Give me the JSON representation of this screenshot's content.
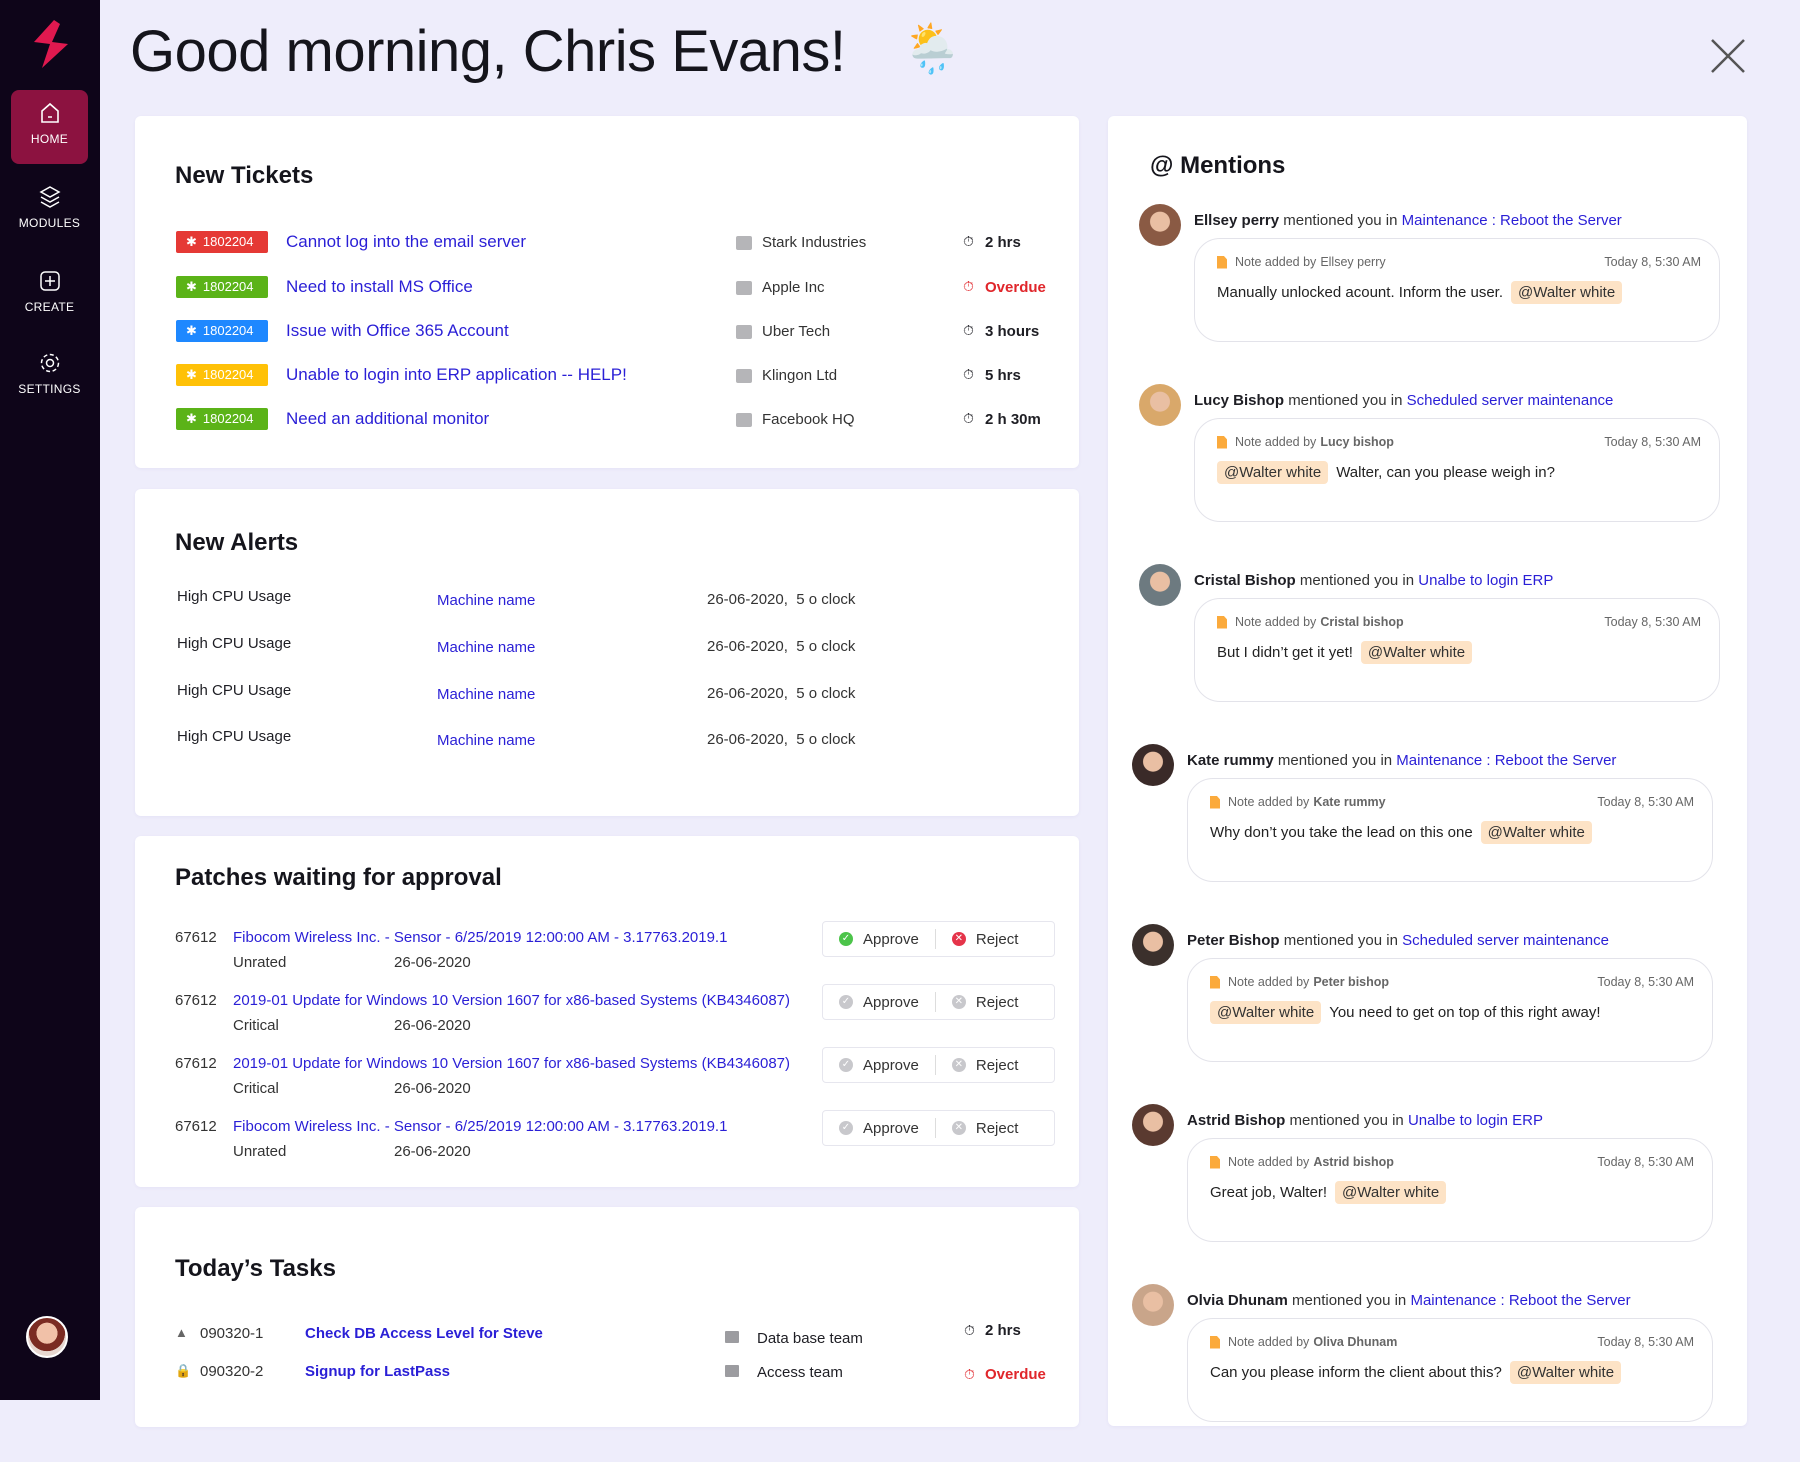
{
  "sidebar": {
    "items": [
      {
        "label": "HOME",
        "icon": "home-icon",
        "active": true
      },
      {
        "label": "MODULES",
        "icon": "layers-icon"
      },
      {
        "label": "CREATE",
        "icon": "plus-square-icon"
      },
      {
        "label": "SETTINGS",
        "icon": "gear-icon"
      }
    ]
  },
  "header": {
    "greeting": "Good morning, Chris Evans!",
    "weather_icon": "🌦️"
  },
  "colors": {
    "accent": "#8c1240",
    "link": "#2a1fd6",
    "overdue": "#e0262b",
    "mention_bg": "#fde3c6"
  },
  "tickets": {
    "title": "New Tickets",
    "rows": [
      {
        "id": "1802204",
        "color": "#e53935",
        "title": "Cannot log into the email server",
        "company": "Stark Industries",
        "time": "2 hrs",
        "overdue": false
      },
      {
        "id": "1802204",
        "color": "#5bb318",
        "title": "Need to install MS Office",
        "company": "Apple Inc",
        "time": "Overdue",
        "overdue": true
      },
      {
        "id": "1802204",
        "color": "#1e88ff",
        "title": "Issue with Office 365 Account",
        "company": "Uber Tech",
        "time": "3 hours",
        "overdue": false
      },
      {
        "id": "1802204",
        "color": "#ffc107",
        "title": "Unable to login into ERP application -- HELP!",
        "company": "Klingon Ltd",
        "time": "5 hrs",
        "overdue": false
      },
      {
        "id": "1802204",
        "color": "#5bb318",
        "title": "Need an additional monitor",
        "company": "Facebook HQ",
        "time": "2 h 30m",
        "overdue": false
      }
    ]
  },
  "alerts": {
    "title": "New Alerts",
    "rows": [
      {
        "name": "High CPU Usage",
        "machine": "Machine name",
        "when": "26-06-2020,  5 o clock"
      },
      {
        "name": "High CPU Usage",
        "machine": "Machine name",
        "when": "26-06-2020,  5 o clock"
      },
      {
        "name": "High CPU Usage",
        "machine": "Machine name",
        "when": "26-06-2020,  5 o clock"
      },
      {
        "name": "High CPU Usage",
        "machine": "Machine name",
        "when": "26-06-2020,  5 o clock"
      }
    ]
  },
  "patches": {
    "title": "Patches waiting for approval",
    "approve_label": "Approve",
    "reject_label": "Reject",
    "rows": [
      {
        "id": "67612",
        "title": "Fibocom Wireless Inc. - Sensor - 6/25/2019 12:00:00 AM - 3.17763.2019.1",
        "rating": "Unrated",
        "date": "26-06-2020",
        "active": true
      },
      {
        "id": "67612",
        "title": "2019-01 Update for Windows 10 Version 1607 for x86-based Systems (KB4346087)",
        "rating": "Critical",
        "date": "26-06-2020",
        "active": false
      },
      {
        "id": "67612",
        "title": "2019-01 Update for Windows 10 Version 1607 for x86-based Systems (KB4346087)",
        "rating": "Critical",
        "date": "26-06-2020",
        "active": false
      },
      {
        "id": "67612",
        "title": "Fibocom Wireless Inc. - Sensor - 6/25/2019 12:00:00 AM - 3.17763.2019.1",
        "rating": "Unrated",
        "date": "26-06-2020",
        "active": false
      }
    ]
  },
  "tasks": {
    "title": "Today’s Tasks",
    "rows": [
      {
        "icon": "warning-icon",
        "id": "090320-1",
        "title": "Check DB Access Level for Steve",
        "team": "Data base team",
        "time": "2 hrs",
        "overdue": false
      },
      {
        "icon": "lock-icon",
        "id": "090320-2",
        "title": "Signup for LastPass",
        "team": "Access team",
        "time": "Overdue",
        "overdue": true
      }
    ]
  },
  "mentions": {
    "title": "@ Mentions",
    "mentioned_text": "mentioned you in",
    "note_prefix": "Note added by",
    "items": [
      {
        "name": "Ellsey perry",
        "context": "Maintenance : Reboot the Server",
        "author": "Ellsey perry",
        "author_bold": false,
        "time": "Today 8, 5:30 AM",
        "text": "Manually unlocked acount. Inform the user.",
        "tag": "@Walter white",
        "tag_first": false,
        "avatar": "#8a5a44"
      },
      {
        "name": "Lucy Bishop",
        "context": "Scheduled server maintenance",
        "author": "Lucy bishop",
        "author_bold": true,
        "time": "Today 8, 5:30 AM",
        "text": "Walter, can you please weigh in?",
        "tag": "@Walter white",
        "tag_first": true,
        "avatar": "#d9a86a"
      },
      {
        "name": "Cristal Bishop",
        "context": "Unalbe to login ERP",
        "author": "Cristal bishop",
        "author_bold": true,
        "time": "Today 8, 5:30 AM",
        "text": "But I didn’t get it yet!",
        "tag": "@Walter white",
        "tag_first": false,
        "avatar": "#6d7a80"
      },
      {
        "name": "Kate rummy",
        "context": "Maintenance : Reboot the Server",
        "author": "Kate rummy",
        "author_bold": true,
        "time": "Today 8, 5:30 AM",
        "text": "Why don’t you take the lead on this one",
        "tag": "@Walter white",
        "tag_first": false,
        "avatar": "#3a2a28"
      },
      {
        "name": "Peter Bishop",
        "context": "Scheduled server maintenance",
        "author": "Peter bishop",
        "author_bold": true,
        "time": "Today 8, 5:30 AM",
        "text": "You need to get on top of this right away!",
        "tag": "@Walter white",
        "tag_first": true,
        "avatar": "#3b302c"
      },
      {
        "name": "Astrid Bishop",
        "context": "Unalbe to login ERP",
        "author": "Astrid bishop",
        "author_bold": true,
        "time": "Today 8, 5:30 AM",
        "text": "Great job, Walter!",
        "tag": "@Walter white",
        "tag_first": false,
        "avatar": "#5a3a30"
      },
      {
        "name": "Olvia Dhunam",
        "context": "Maintenance : Reboot the Server",
        "author": "Oliva Dhunam",
        "author_bold": true,
        "time": "Today 8, 5:30 AM",
        "text": "Can you please inform the client about this?",
        "tag": "@Walter white",
        "tag_first": false,
        "avatar": "#c9a58a"
      }
    ]
  }
}
